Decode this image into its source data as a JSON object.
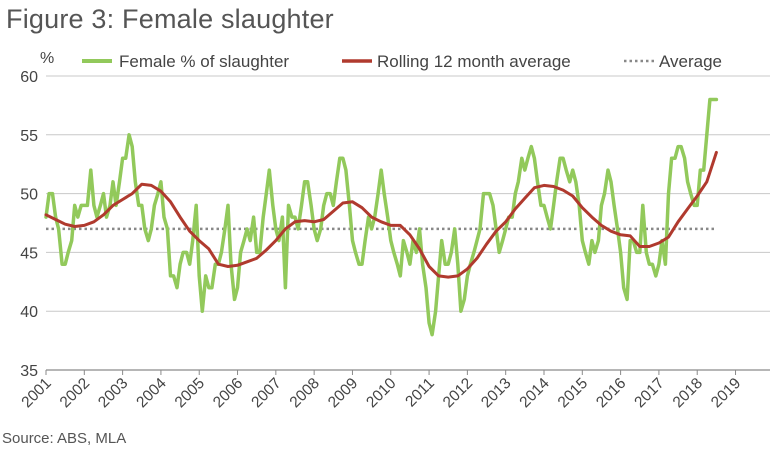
{
  "title": "Figure 3: Female slaughter",
  "source": "Source: ABS, MLA",
  "chart_data": {
    "type": "line",
    "ylabel": "%",
    "ylim": [
      35,
      60
    ],
    "yticks": [
      35,
      40,
      45,
      50,
      55,
      60
    ],
    "xlim": [
      2001,
      2019.9
    ],
    "xticks": [
      "2001",
      "2002",
      "2003",
      "2004",
      "2005",
      "2006",
      "2007",
      "2008",
      "2009",
      "2010",
      "2011",
      "2012",
      "2013",
      "2014",
      "2015",
      "2016",
      "2017",
      "2018",
      "2019"
    ],
    "grid": "horizontal",
    "legend_position": "top",
    "series": [
      {
        "name": "Female % of slaughter",
        "color": "#92C95B",
        "style": "solid",
        "points": [
          [
            2001.0,
            48
          ],
          [
            2001.08,
            50
          ],
          [
            2001.17,
            50
          ],
          [
            2001.25,
            48
          ],
          [
            2001.33,
            47
          ],
          [
            2001.42,
            44
          ],
          [
            2001.5,
            44
          ],
          [
            2001.58,
            45
          ],
          [
            2001.67,
            46
          ],
          [
            2001.75,
            49
          ],
          [
            2001.83,
            48
          ],
          [
            2001.92,
            49
          ],
          [
            2002.0,
            49
          ],
          [
            2002.08,
            49
          ],
          [
            2002.17,
            52
          ],
          [
            2002.25,
            49
          ],
          [
            2002.33,
            48
          ],
          [
            2002.42,
            49
          ],
          [
            2002.5,
            50
          ],
          [
            2002.58,
            48
          ],
          [
            2002.67,
            49
          ],
          [
            2002.75,
            51
          ],
          [
            2002.83,
            49
          ],
          [
            2002.92,
            51
          ],
          [
            2003.0,
            53
          ],
          [
            2003.08,
            53
          ],
          [
            2003.17,
            55
          ],
          [
            2003.25,
            54
          ],
          [
            2003.33,
            51
          ],
          [
            2003.42,
            49
          ],
          [
            2003.5,
            49
          ],
          [
            2003.58,
            47
          ],
          [
            2003.67,
            46
          ],
          [
            2003.75,
            47
          ],
          [
            2003.83,
            49
          ],
          [
            2003.92,
            50
          ],
          [
            2004.0,
            51
          ],
          [
            2004.08,
            48
          ],
          [
            2004.17,
            47
          ],
          [
            2004.25,
            43
          ],
          [
            2004.33,
            43
          ],
          [
            2004.42,
            42
          ],
          [
            2004.5,
            44
          ],
          [
            2004.58,
            45
          ],
          [
            2004.67,
            45
          ],
          [
            2004.75,
            44
          ],
          [
            2004.83,
            46
          ],
          [
            2004.92,
            49
          ],
          [
            2005.0,
            43
          ],
          [
            2005.08,
            40
          ],
          [
            2005.17,
            43
          ],
          [
            2005.25,
            42
          ],
          [
            2005.33,
            42
          ],
          [
            2005.42,
            44
          ],
          [
            2005.5,
            44
          ],
          [
            2005.58,
            45
          ],
          [
            2005.67,
            47
          ],
          [
            2005.75,
            49
          ],
          [
            2005.83,
            44
          ],
          [
            2005.92,
            41
          ],
          [
            2006.0,
            42
          ],
          [
            2006.08,
            45
          ],
          [
            2006.17,
            46
          ],
          [
            2006.25,
            47
          ],
          [
            2006.33,
            46
          ],
          [
            2006.42,
            48
          ],
          [
            2006.5,
            45
          ],
          [
            2006.58,
            45
          ],
          [
            2006.67,
            48
          ],
          [
            2006.75,
            50
          ],
          [
            2006.83,
            52
          ],
          [
            2006.92,
            49
          ],
          [
            2007.0,
            47
          ],
          [
            2007.08,
            46
          ],
          [
            2007.17,
            48
          ],
          [
            2007.25,
            42
          ],
          [
            2007.33,
            49
          ],
          [
            2007.42,
            48
          ],
          [
            2007.5,
            48
          ],
          [
            2007.58,
            47
          ],
          [
            2007.67,
            49
          ],
          [
            2007.75,
            51
          ],
          [
            2007.83,
            51
          ],
          [
            2007.92,
            49
          ],
          [
            2008.0,
            47
          ],
          [
            2008.08,
            46
          ],
          [
            2008.17,
            47
          ],
          [
            2008.25,
            49
          ],
          [
            2008.33,
            50
          ],
          [
            2008.42,
            50
          ],
          [
            2008.5,
            49
          ],
          [
            2008.58,
            51
          ],
          [
            2008.67,
            53
          ],
          [
            2008.75,
            53
          ],
          [
            2008.83,
            52
          ],
          [
            2008.92,
            49
          ],
          [
            2009.0,
            46
          ],
          [
            2009.08,
            45
          ],
          [
            2009.17,
            44
          ],
          [
            2009.25,
            44
          ],
          [
            2009.33,
            46
          ],
          [
            2009.42,
            48
          ],
          [
            2009.5,
            47
          ],
          [
            2009.58,
            48
          ],
          [
            2009.67,
            50
          ],
          [
            2009.75,
            52
          ],
          [
            2009.83,
            50
          ],
          [
            2009.92,
            48
          ],
          [
            2010.0,
            46
          ],
          [
            2010.08,
            45
          ],
          [
            2010.17,
            44
          ],
          [
            2010.25,
            43
          ],
          [
            2010.33,
            46
          ],
          [
            2010.42,
            45
          ],
          [
            2010.5,
            44
          ],
          [
            2010.58,
            46
          ],
          [
            2010.67,
            45
          ],
          [
            2010.75,
            47
          ],
          [
            2010.83,
            44
          ],
          [
            2010.92,
            42
          ],
          [
            2011.0,
            39
          ],
          [
            2011.08,
            38
          ],
          [
            2011.17,
            40
          ],
          [
            2011.25,
            43
          ],
          [
            2011.33,
            46
          ],
          [
            2011.42,
            44
          ],
          [
            2011.5,
            44
          ],
          [
            2011.58,
            45
          ],
          [
            2011.67,
            47
          ],
          [
            2011.75,
            44
          ],
          [
            2011.83,
            40
          ],
          [
            2011.92,
            41
          ],
          [
            2012.0,
            43
          ],
          [
            2012.08,
            44
          ],
          [
            2012.17,
            45
          ],
          [
            2012.25,
            46
          ],
          [
            2012.33,
            47
          ],
          [
            2012.42,
            50
          ],
          [
            2012.5,
            50
          ],
          [
            2012.58,
            50
          ],
          [
            2012.67,
            49
          ],
          [
            2012.75,
            47
          ],
          [
            2012.83,
            45
          ],
          [
            2012.92,
            46
          ],
          [
            2013.0,
            47
          ],
          [
            2013.08,
            48
          ],
          [
            2013.17,
            48
          ],
          [
            2013.25,
            50
          ],
          [
            2013.33,
            51
          ],
          [
            2013.42,
            53
          ],
          [
            2013.5,
            52
          ],
          [
            2013.58,
            53
          ],
          [
            2013.67,
            54
          ],
          [
            2013.75,
            53
          ],
          [
            2013.83,
            51
          ],
          [
            2013.92,
            49
          ],
          [
            2014.0,
            49
          ],
          [
            2014.08,
            48
          ],
          [
            2014.17,
            47
          ],
          [
            2014.25,
            49
          ],
          [
            2014.33,
            51
          ],
          [
            2014.42,
            53
          ],
          [
            2014.5,
            53
          ],
          [
            2014.58,
            52
          ],
          [
            2014.67,
            51
          ],
          [
            2014.75,
            52
          ],
          [
            2014.83,
            51
          ],
          [
            2014.92,
            49
          ],
          [
            2015.0,
            46
          ],
          [
            2015.08,
            45
          ],
          [
            2015.17,
            44
          ],
          [
            2015.25,
            46
          ],
          [
            2015.33,
            45
          ],
          [
            2015.42,
            46
          ],
          [
            2015.5,
            49
          ],
          [
            2015.58,
            50
          ],
          [
            2015.67,
            52
          ],
          [
            2015.75,
            51
          ],
          [
            2015.83,
            49
          ],
          [
            2015.92,
            47
          ],
          [
            2016.0,
            45
          ],
          [
            2016.08,
            42
          ],
          [
            2016.17,
            41
          ],
          [
            2016.25,
            46
          ],
          [
            2016.33,
            46
          ],
          [
            2016.42,
            45
          ],
          [
            2016.5,
            45
          ],
          [
            2016.58,
            49
          ],
          [
            2016.67,
            45
          ],
          [
            2016.75,
            44
          ],
          [
            2016.83,
            44
          ],
          [
            2016.92,
            43
          ],
          [
            2017.0,
            44
          ],
          [
            2017.08,
            46
          ],
          [
            2017.17,
            44
          ],
          [
            2017.25,
            50
          ],
          [
            2017.33,
            53
          ],
          [
            2017.42,
            53
          ],
          [
            2017.5,
            54
          ],
          [
            2017.58,
            54
          ],
          [
            2017.67,
            53
          ],
          [
            2017.75,
            51
          ],
          [
            2017.83,
            50
          ],
          [
            2017.92,
            49
          ],
          [
            2018.0,
            49
          ],
          [
            2018.08,
            52
          ],
          [
            2018.17,
            52
          ],
          [
            2018.25,
            55
          ],
          [
            2018.33,
            58
          ],
          [
            2018.42,
            58
          ],
          [
            2018.5,
            58
          ]
        ]
      },
      {
        "name": "Rolling 12 month average",
        "color": "#B03A2E",
        "style": "solid",
        "points": [
          [
            2001.0,
            48.2
          ],
          [
            2001.25,
            47.8
          ],
          [
            2001.5,
            47.4
          ],
          [
            2001.75,
            47.2
          ],
          [
            2002.0,
            47.3
          ],
          [
            2002.25,
            47.6
          ],
          [
            2002.5,
            48.2
          ],
          [
            2002.75,
            49.0
          ],
          [
            2003.0,
            49.5
          ],
          [
            2003.25,
            50.0
          ],
          [
            2003.5,
            50.8
          ],
          [
            2003.75,
            50.7
          ],
          [
            2004.0,
            50.2
          ],
          [
            2004.25,
            49.3
          ],
          [
            2004.5,
            48.0
          ],
          [
            2004.75,
            46.8
          ],
          [
            2005.0,
            46.0
          ],
          [
            2005.25,
            45.3
          ],
          [
            2005.5,
            44.0
          ],
          [
            2005.75,
            43.8
          ],
          [
            2006.0,
            43.9
          ],
          [
            2006.25,
            44.2
          ],
          [
            2006.5,
            44.5
          ],
          [
            2006.75,
            45.2
          ],
          [
            2007.0,
            46.0
          ],
          [
            2007.25,
            47.0
          ],
          [
            2007.5,
            47.6
          ],
          [
            2007.75,
            47.7
          ],
          [
            2008.0,
            47.6
          ],
          [
            2008.25,
            47.8
          ],
          [
            2008.5,
            48.5
          ],
          [
            2008.75,
            49.2
          ],
          [
            2009.0,
            49.3
          ],
          [
            2009.25,
            48.8
          ],
          [
            2009.5,
            48.0
          ],
          [
            2009.75,
            47.6
          ],
          [
            2010.0,
            47.3
          ],
          [
            2010.25,
            47.3
          ],
          [
            2010.5,
            46.5
          ],
          [
            2010.75,
            45.3
          ],
          [
            2011.0,
            43.8
          ],
          [
            2011.25,
            43.0
          ],
          [
            2011.5,
            42.9
          ],
          [
            2011.75,
            43.0
          ],
          [
            2012.0,
            43.6
          ],
          [
            2012.25,
            44.5
          ],
          [
            2012.5,
            45.7
          ],
          [
            2012.75,
            46.8
          ],
          [
            2013.0,
            47.6
          ],
          [
            2013.25,
            48.7
          ],
          [
            2013.5,
            49.6
          ],
          [
            2013.75,
            50.5
          ],
          [
            2014.0,
            50.7
          ],
          [
            2014.25,
            50.6
          ],
          [
            2014.5,
            50.3
          ],
          [
            2014.75,
            49.8
          ],
          [
            2015.0,
            48.8
          ],
          [
            2015.25,
            48.0
          ],
          [
            2015.5,
            47.3
          ],
          [
            2015.75,
            46.8
          ],
          [
            2016.0,
            46.5
          ],
          [
            2016.25,
            46.4
          ],
          [
            2016.5,
            45.5
          ],
          [
            2016.75,
            45.5
          ],
          [
            2017.0,
            45.8
          ],
          [
            2017.25,
            46.3
          ],
          [
            2017.5,
            47.6
          ],
          [
            2017.75,
            48.7
          ],
          [
            2018.0,
            49.8
          ],
          [
            2018.25,
            51.0
          ],
          [
            2018.5,
            53.5
          ]
        ]
      },
      {
        "name": "Average",
        "color": "#888888",
        "style": "dotted",
        "points": [
          [
            2001.0,
            47
          ],
          [
            2018.5,
            47
          ]
        ]
      }
    ]
  }
}
